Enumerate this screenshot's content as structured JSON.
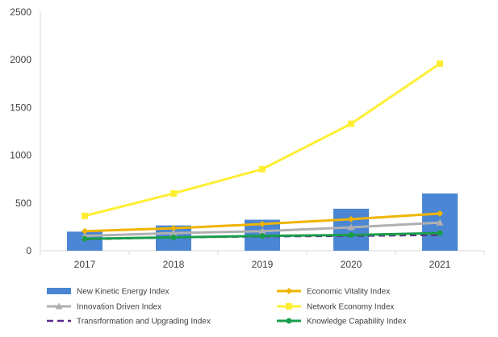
{
  "chart_data": {
    "type": "bar",
    "categories": [
      "2017",
      "2018",
      "2019",
      "2020",
      "2021"
    ],
    "ylim": [
      0,
      2500
    ],
    "yticks": [
      "0",
      "500",
      "1000",
      "1500",
      "2000",
      "2500"
    ],
    "grid": false,
    "legend_position": "bottom",
    "series": [
      {
        "name": "New Kinetic Energy Index",
        "kind": "bar",
        "color": "#4a86d4",
        "values": [
          200,
          265,
          325,
          440,
          600
        ]
      },
      {
        "name": "Economic Vitality Index",
        "kind": "line",
        "marker": "diamond",
        "color": "#f0b400",
        "values": [
          205,
          235,
          280,
          330,
          390
        ]
      },
      {
        "name": "Innovation Driven Index",
        "kind": "line",
        "marker": "triangle",
        "color": "#b0b0b0",
        "values": [
          155,
          185,
          205,
          245,
          295
        ]
      },
      {
        "name": "Network Economy Index",
        "kind": "line",
        "marker": "square",
        "color": "#ffee33",
        "values": [
          365,
          600,
          855,
          1330,
          1960
        ]
      },
      {
        "name": "Transrformation and Upgrading Index",
        "kind": "line",
        "marker": "none",
        "dashed": true,
        "color": "#5b2b8a",
        "values": [
          120,
          140,
          150,
          155,
          165
        ]
      },
      {
        "name": "Knowledge Capability Index",
        "kind": "line",
        "marker": "circle",
        "color": "#1a9e4a",
        "values": [
          125,
          140,
          155,
          165,
          185
        ]
      }
    ]
  }
}
